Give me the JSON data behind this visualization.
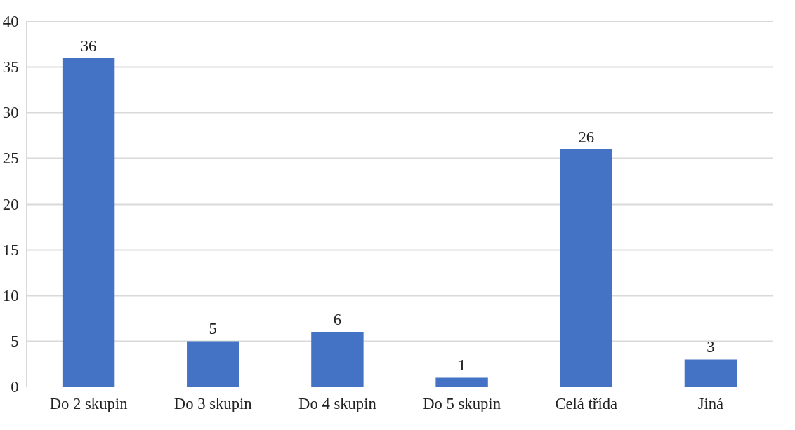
{
  "chart_data": {
    "type": "bar",
    "categories": [
      "Do 2 skupin",
      "Do 3 skupin",
      "Do 4 skupin",
      "Do 5 skupin",
      "Celá třída",
      "Jiná"
    ],
    "values": [
      36,
      5,
      6,
      1,
      26,
      3
    ],
    "color": "#4472c4",
    "ylim": [
      0,
      40
    ],
    "yticks": [
      0,
      5,
      10,
      15,
      20,
      25,
      30,
      35,
      40
    ],
    "grid": "y",
    "data_labels": true
  }
}
